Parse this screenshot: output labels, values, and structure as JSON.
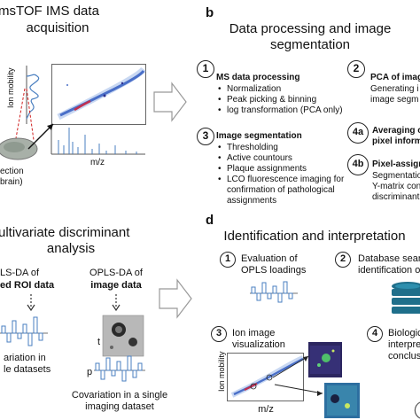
{
  "panel_a": {
    "title_line1": "msTOF IMS data",
    "title_line2": "acquisition",
    "y_axis": "Ion mobility",
    "x_axis": "m/z",
    "section_line1": "ection",
    "section_line2": "brain)"
  },
  "panel_b": {
    "letter": "b",
    "title_line1": "Data processing and image",
    "title_line2": "segmentation",
    "step1": {
      "num": "1",
      "title": "MS data processing",
      "items": [
        "Normalization",
        "Peak picking & binning",
        "log transformation (PCA only)"
      ]
    },
    "step2": {
      "num": "2",
      "title": "PCA of imag",
      "line1": "Generating i",
      "line2": "image segm"
    },
    "step3": {
      "num": "3",
      "title": "Image segmentation",
      "items": [
        "Thresholding",
        "Active countours",
        "Plaque assignments",
        "LCO fluorescence imaging for"
      ],
      "cont1": "confirmation of pathological",
      "cont2": "assignments"
    },
    "step4a": {
      "num": "4a",
      "line1": "Averaging c",
      "line2": "pixel inform"
    },
    "step4b": {
      "num": "4b",
      "title": "Pixel-assign",
      "line1": "Segmentatio",
      "line2": "Y-matrix con",
      "line3": "discriminant"
    }
  },
  "panel_c": {
    "title_line1": "ultivariate discriminant",
    "title_line2": "analysis",
    "left_line1": "LS-DA of",
    "left_line2": "ed ROI data",
    "left_cov1": "ariation in",
    "left_cov2": "le datasets",
    "right_line1": "OPLS-DA of",
    "right_line2": "image data",
    "t_label": "t",
    "p_label": "p",
    "right_cov1": "Covariation in a single",
    "right_cov2": "imaging dataset"
  },
  "panel_d": {
    "letter": "d",
    "title": "Identification and interpretation",
    "step1": {
      "num": "1",
      "line1": "Evaluation of",
      "line2": "OPLS loadings"
    },
    "step2": {
      "num": "2",
      "line1": "Database searc",
      "line2": "identification of"
    },
    "step3": {
      "num": "3",
      "line1": "Ion image",
      "line2": "visualization"
    },
    "step4": {
      "num": "4",
      "line1": "Biologic",
      "line2": "interpre",
      "line3": "conclus"
    },
    "y_axis": "Ion mobility",
    "x_axis": "m/z"
  },
  "colors": {
    "accent_blue": "#4a7fc0",
    "dark_blue": "#2a2f8f",
    "db_teal": "#1f6f8b",
    "heatmap_dark": "#2c2660",
    "heatmap_green": "#4fbf6a"
  }
}
